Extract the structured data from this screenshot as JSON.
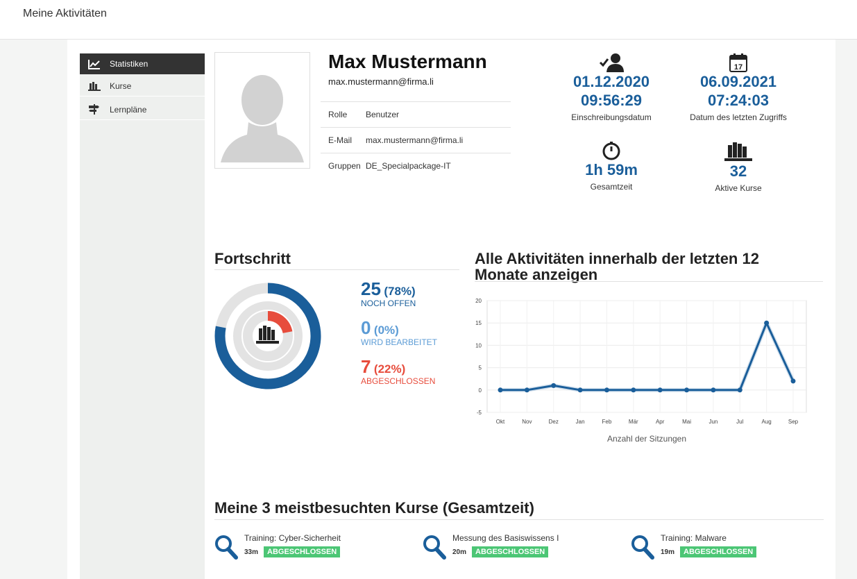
{
  "page": {
    "title": "Meine Aktivitäten"
  },
  "sidebar": {
    "items": [
      {
        "label": "Statistiken",
        "icon": "chart-icon",
        "active": true
      },
      {
        "label": "Kurse",
        "icon": "books-icon",
        "active": false
      },
      {
        "label": "Lernpläne",
        "icon": "signpost-icon",
        "active": false
      }
    ]
  },
  "profile": {
    "name": "Max Mustermann",
    "email": "max.mustermann@firma.li",
    "fields": [
      {
        "key": "Rolle",
        "value": "Benutzer"
      },
      {
        "key": "E-Mail",
        "value": "max.mustermann@firma.li"
      },
      {
        "key": "Gruppen",
        "value": "DE_Specialpackage-IT"
      }
    ]
  },
  "stats": {
    "enrollment": {
      "date": "01.12.2020",
      "time": "09:56:29",
      "label": "Einschreibungsdatum",
      "icon": "user-check-icon"
    },
    "last_access": {
      "date": "06.09.2021",
      "time": "07:24:03",
      "label": "Datum des letzten Zugriffs",
      "icon": "calendar-icon",
      "calendar_day": "17"
    },
    "total_time": {
      "value": "1h 59m",
      "label": "Gesamtzeit",
      "icon": "stopwatch-icon"
    },
    "active_courses": {
      "value": "32",
      "label": "Aktive Kurse",
      "icon": "books-icon"
    }
  },
  "progress": {
    "title": "Fortschritt",
    "open": {
      "count": "25",
      "pct": "(78%)",
      "label": "NOCH OFFEN",
      "fraction": 0.78,
      "color": "#1a5e9a"
    },
    "in_progress": {
      "count": "0",
      "pct": "(0%)",
      "label": "WIRD BEARBEITET",
      "fraction": 0.0,
      "color": "#5b9bd5"
    },
    "completed": {
      "count": "7",
      "pct": "(22%)",
      "label": "ABGESCHLOSSEN",
      "fraction": 0.22,
      "color": "#e74c3c"
    }
  },
  "activity": {
    "title_line1": "Alle Aktivitäten innerhalb der letzten 12",
    "title_line2": "Monate anzeigen"
  },
  "chart_data": {
    "type": "line",
    "categories": [
      "Okt",
      "Nov",
      "Dez",
      "Jan",
      "Feb",
      "Mär",
      "Apr",
      "Mai",
      "Jun",
      "Jul",
      "Aug",
      "Sep"
    ],
    "series": [
      {
        "values": [
          0,
          0,
          1,
          0,
          0,
          0,
          0,
          0,
          0,
          0,
          15,
          2
        ]
      }
    ],
    "xlabel": "Anzahl der Sitzungen",
    "ylabel": "",
    "ylim": [
      -5,
      20
    ],
    "yticks": [
      20,
      15,
      10,
      5,
      0,
      -5
    ],
    "grid": true,
    "line_color": "#1a5e9a"
  },
  "top_courses": {
    "title": "Meine 3 meistbesuchten Kurse (Gesamtzeit)",
    "items": [
      {
        "name": "Training: Cyber-Sicherheit",
        "time": "33m",
        "status": "ABGESCHLOSSEN"
      },
      {
        "name": "Messung des Basiswissens I",
        "time": "20m",
        "status": "ABGESCHLOSSEN"
      },
      {
        "name": "Training: Malware",
        "time": "19m",
        "status": "ABGESCHLOSSEN"
      }
    ]
  }
}
